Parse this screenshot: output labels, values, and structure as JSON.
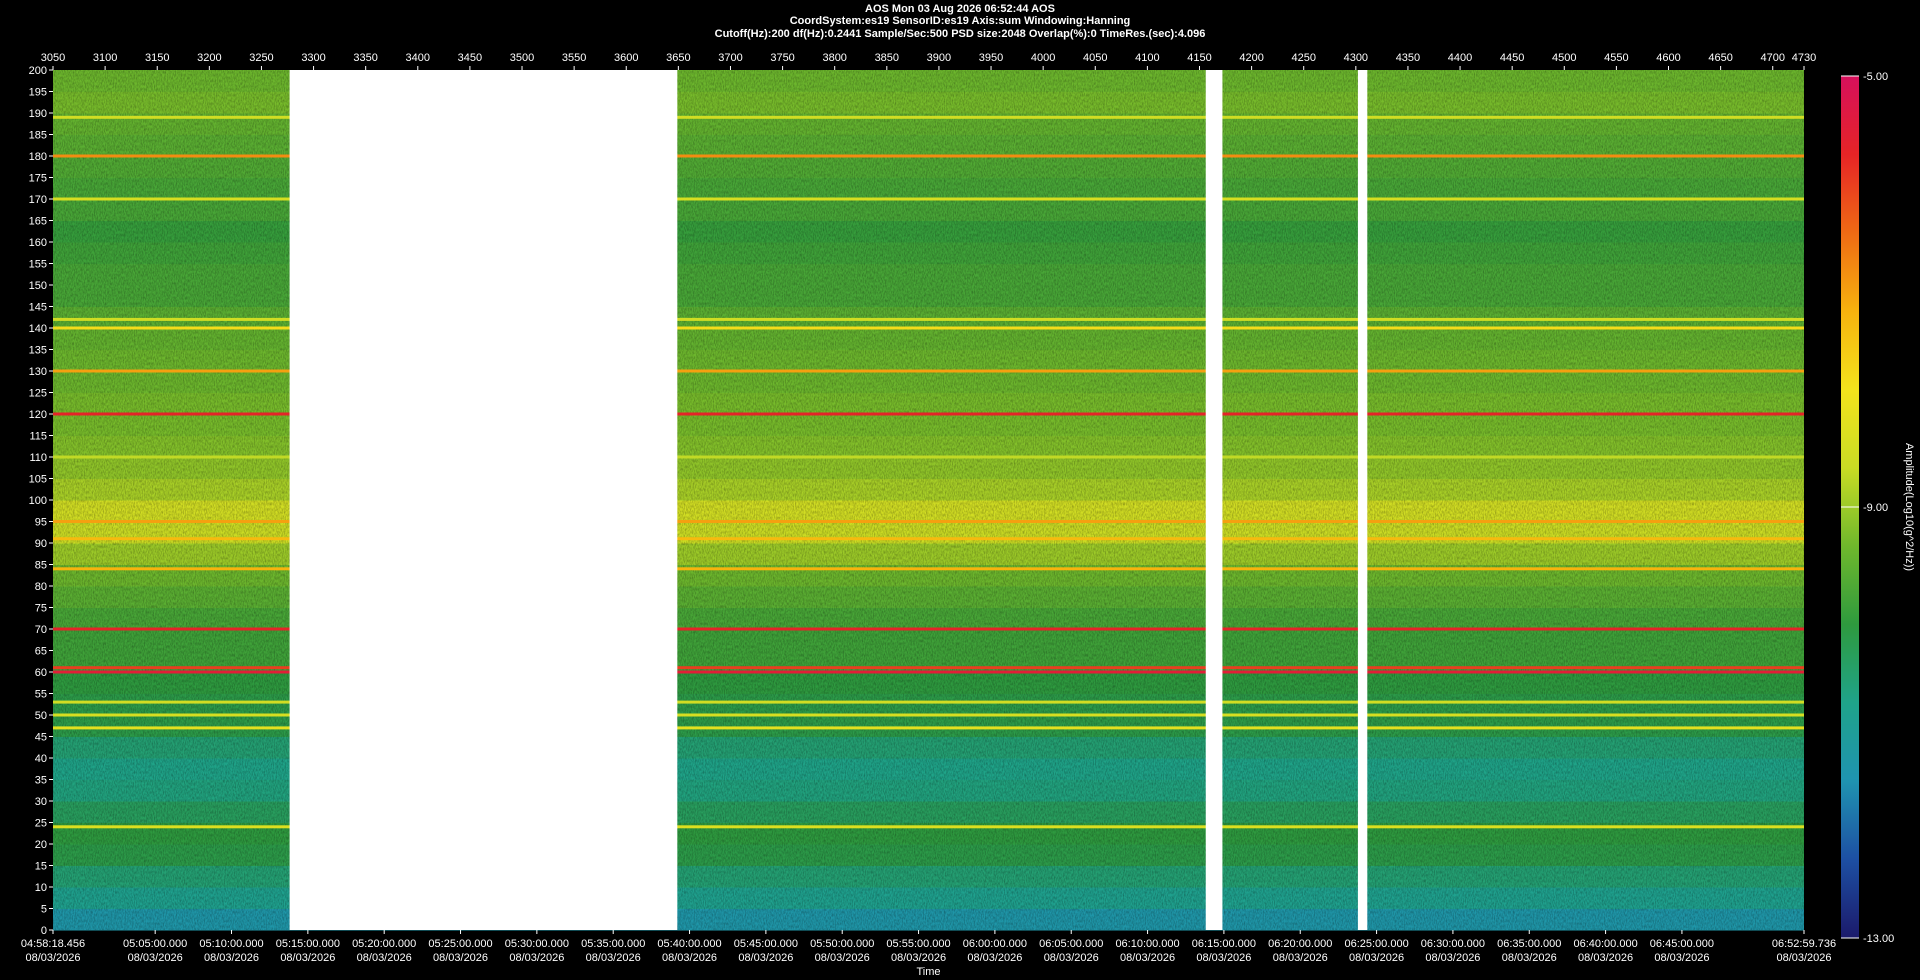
{
  "chart_data": {
    "type": "spectrogram",
    "title": "AOS  Mon 03 Aug 2026 06:52:44  AOS",
    "subtitle_lines": [
      "CoordSystem:es19    SensorID:es19    Axis:sum    Windowing:Hanning",
      "Cutoff(Hz):200      df(Hz):0.2441      Sample/Sec:500      PSD size:2048      Overlap(%):0      TimeRes.(sec):4.096"
    ],
    "xlim": [
      3050,
      4730
    ],
    "xticks": [
      3050,
      3100,
      3150,
      3200,
      3250,
      3300,
      3350,
      3400,
      3450,
      3500,
      3550,
      3600,
      3650,
      3700,
      3750,
      3800,
      3850,
      3900,
      3950,
      4000,
      4050,
      4100,
      4150,
      4200,
      4250,
      4300,
      4350,
      4400,
      4450,
      4500,
      4550,
      4600,
      4650,
      4700,
      4730
    ],
    "ylim": [
      0,
      200
    ],
    "yticks": [
      0,
      5,
      10,
      15,
      20,
      25,
      30,
      35,
      40,
      45,
      50,
      55,
      60,
      65,
      70,
      75,
      80,
      85,
      90,
      95,
      100,
      105,
      110,
      115,
      120,
      125,
      130,
      135,
      140,
      145,
      150,
      155,
      160,
      165,
      170,
      175,
      180,
      185,
      190,
      195,
      200
    ],
    "time_axis": {
      "label": "Time",
      "lim": [
        "2026-08-03T04:58:18.456",
        "2026-08-03T06:52:59.736"
      ],
      "ticks": [
        {
          "value": "2026-08-03T04:58:18.456",
          "label": "04:58:18.456",
          "date": "08/03/2026"
        },
        {
          "value": "2026-08-03T05:05:00.000",
          "label": "05:05:00.000",
          "date": "08/03/2026"
        },
        {
          "value": "2026-08-03T05:10:00.000",
          "label": "05:10:00.000",
          "date": "08/03/2026"
        },
        {
          "value": "2026-08-03T05:15:00.000",
          "label": "05:15:00.000",
          "date": "08/03/2026"
        },
        {
          "value": "2026-08-03T05:20:00.000",
          "label": "05:20:00.000",
          "date": "08/03/2026"
        },
        {
          "value": "2026-08-03T05:25:00.000",
          "label": "05:25:00.000",
          "date": "08/03/2026"
        },
        {
          "value": "2026-08-03T05:30:00.000",
          "label": "05:30:00.000",
          "date": "08/03/2026"
        },
        {
          "value": "2026-08-03T05:35:00.000",
          "label": "05:35:00.000",
          "date": "08/03/2026"
        },
        {
          "value": "2026-08-03T05:40:00.000",
          "label": "05:40:00.000",
          "date": "08/03/2026"
        },
        {
          "value": "2026-08-03T05:45:00.000",
          "label": "05:45:00.000",
          "date": "08/03/2026"
        },
        {
          "value": "2026-08-03T05:50:00.000",
          "label": "05:50:00.000",
          "date": "08/03/2026"
        },
        {
          "value": "2026-08-03T05:55:00.000",
          "label": "05:55:00.000",
          "date": "08/03/2026"
        },
        {
          "value": "2026-08-03T06:00:00.000",
          "label": "06:00:00.000",
          "date": "08/03/2026"
        },
        {
          "value": "2026-08-03T06:05:00.000",
          "label": "06:05:00.000",
          "date": "08/03/2026"
        },
        {
          "value": "2026-08-03T06:10:00.000",
          "label": "06:10:00.000",
          "date": "08/03/2026"
        },
        {
          "value": "2026-08-03T06:15:00.000",
          "label": "06:15:00.000",
          "date": "08/03/2026"
        },
        {
          "value": "2026-08-03T06:20:00.000",
          "label": "06:20:00.000",
          "date": "08/03/2026"
        },
        {
          "value": "2026-08-03T06:25:00.000",
          "label": "06:25:00.000",
          "date": "08/03/2026"
        },
        {
          "value": "2026-08-03T06:30:00.000",
          "label": "06:30:00.000",
          "date": "08/03/2026"
        },
        {
          "value": "2026-08-03T06:35:00.000",
          "label": "06:35:00.000",
          "date": "08/03/2026"
        },
        {
          "value": "2026-08-03T06:40:00.000",
          "label": "06:40:00.000",
          "date": "08/03/2026"
        },
        {
          "value": "2026-08-03T06:45:00.000",
          "label": "06:45:00.000",
          "date": "08/03/2026"
        },
        {
          "value": "2026-08-03T06:52:59.736",
          "label": "06:52:59.736",
          "date": "08/03/2026"
        }
      ]
    },
    "background": {
      "freqs": [
        0,
        5,
        10,
        15,
        20,
        25,
        30,
        35,
        40,
        45,
        50,
        55,
        60,
        65,
        70,
        75,
        80,
        85,
        90,
        95,
        100,
        105,
        110,
        115,
        120,
        125,
        130,
        135,
        140,
        145,
        150,
        155,
        160,
        165,
        170,
        175,
        180,
        185,
        190,
        195
      ],
      "values": [
        -11.4,
        -10.9,
        -10.6,
        -10.2,
        -10.1,
        -10.4,
        -10.7,
        -10.8,
        -10.6,
        -10.2,
        -10.2,
        -10.1,
        -9.9,
        -9.9,
        -9.8,
        -9.6,
        -9.4,
        -9.0,
        -8.6,
        -8.5,
        -8.9,
        -9.1,
        -9.2,
        -9.3,
        -9.3,
        -9.4,
        -9.4,
        -9.5,
        -9.6,
        -9.8,
        -9.8,
        -9.9,
        -10.0,
        -9.8,
        -9.8,
        -9.7,
        -9.6,
        -9.5,
        -9.3,
        -9.4
      ]
    },
    "tones": {
      "freqs": [
        24,
        47,
        50,
        53,
        60,
        61,
        70,
        84,
        91,
        95,
        110,
        120,
        130,
        140,
        142,
        170,
        180,
        189
      ],
      "values": [
        -8.3,
        -8.2,
        -8.4,
        -8.5,
        -5.5,
        -6.0,
        -5.7,
        -7.2,
        -7.3,
        -7.0,
        -8.7,
        -5.7,
        -7.0,
        -7.8,
        -8.5,
        -8.4,
        -6.8,
        -8.5
      ]
    },
    "gaps": [
      [
        3277,
        3649
      ],
      [
        4156,
        4172
      ],
      [
        4302,
        4311
      ]
    ],
    "colormap": [
      "#1b1a6b",
      "#1d4fa3",
      "#1f93b0",
      "#1fa38a",
      "#2e9a3e",
      "#6fb82c",
      "#c9dc24",
      "#f3e31c",
      "#f7b20e",
      "#ef6a14",
      "#e62426",
      "#d6105c"
    ],
    "clim": [
      -13,
      -5
    ],
    "cticks": [
      {
        "value": -13,
        "label": "-13.00"
      },
      {
        "value": -9,
        "label": "-9.00"
      },
      {
        "value": -5,
        "label": "-5.00"
      }
    ],
    "clabel": "Amplitude(Log10(g^2/Hz))"
  }
}
